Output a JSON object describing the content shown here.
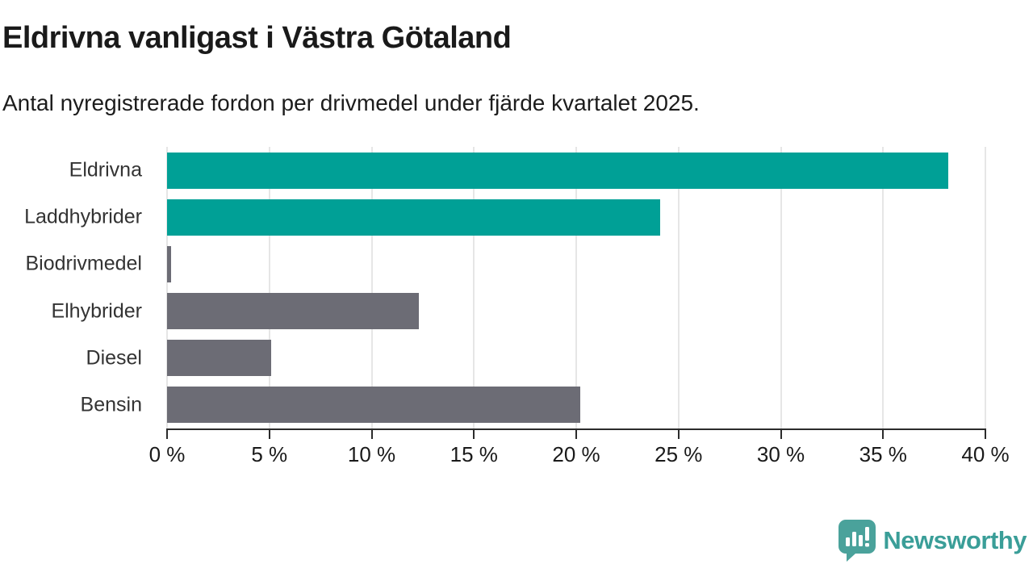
{
  "header": {
    "title": "Eldrivna vanligast i Västra Götaland",
    "subtitle": "Antal nyregistrerade fordon per drivmedel under fjärde kvartalet 2025."
  },
  "chart_data": {
    "type": "bar",
    "orientation": "horizontal",
    "title": "Eldrivna vanligast i Västra Götaland",
    "subtitle": "Antal nyregistrerade fordon per drivmedel under fjärde kvartalet 2025.",
    "categories": [
      "Eldrivna",
      "Laddhybrider",
      "Biodrivmedel",
      "Elhybrider",
      "Diesel",
      "Bensin"
    ],
    "values": [
      38.2,
      24.1,
      0.2,
      12.3,
      5.1,
      20.2
    ],
    "value_unit": "%",
    "bar_colors": [
      "#00a096",
      "#00a096",
      "#6c6c75",
      "#6c6c75",
      "#6c6c75",
      "#6c6c75"
    ],
    "xlim": [
      0,
      40
    ],
    "x_ticks": [
      0,
      5,
      10,
      15,
      20,
      25,
      30,
      35,
      40
    ],
    "x_tick_labels": [
      "0 %",
      "5 %",
      "10 %",
      "15 %",
      "20 %",
      "25 %",
      "30 %",
      "35 %",
      "40 %"
    ],
    "grid": "vertical",
    "legend": "none",
    "data_labels": "none"
  },
  "palette": {
    "highlight": "#00a096",
    "neutral": "#6c6c75",
    "gridline": "#e6e6e6",
    "axis": "#2b2b2b",
    "text": "#1a1a1a",
    "brand_teal": "#3a9e98",
    "logo_icon_teal": "#4aa29b"
  },
  "branding": {
    "logo_text": "Newsworthy",
    "logo_icon": "speech-bubble-bar-chart-icon"
  }
}
